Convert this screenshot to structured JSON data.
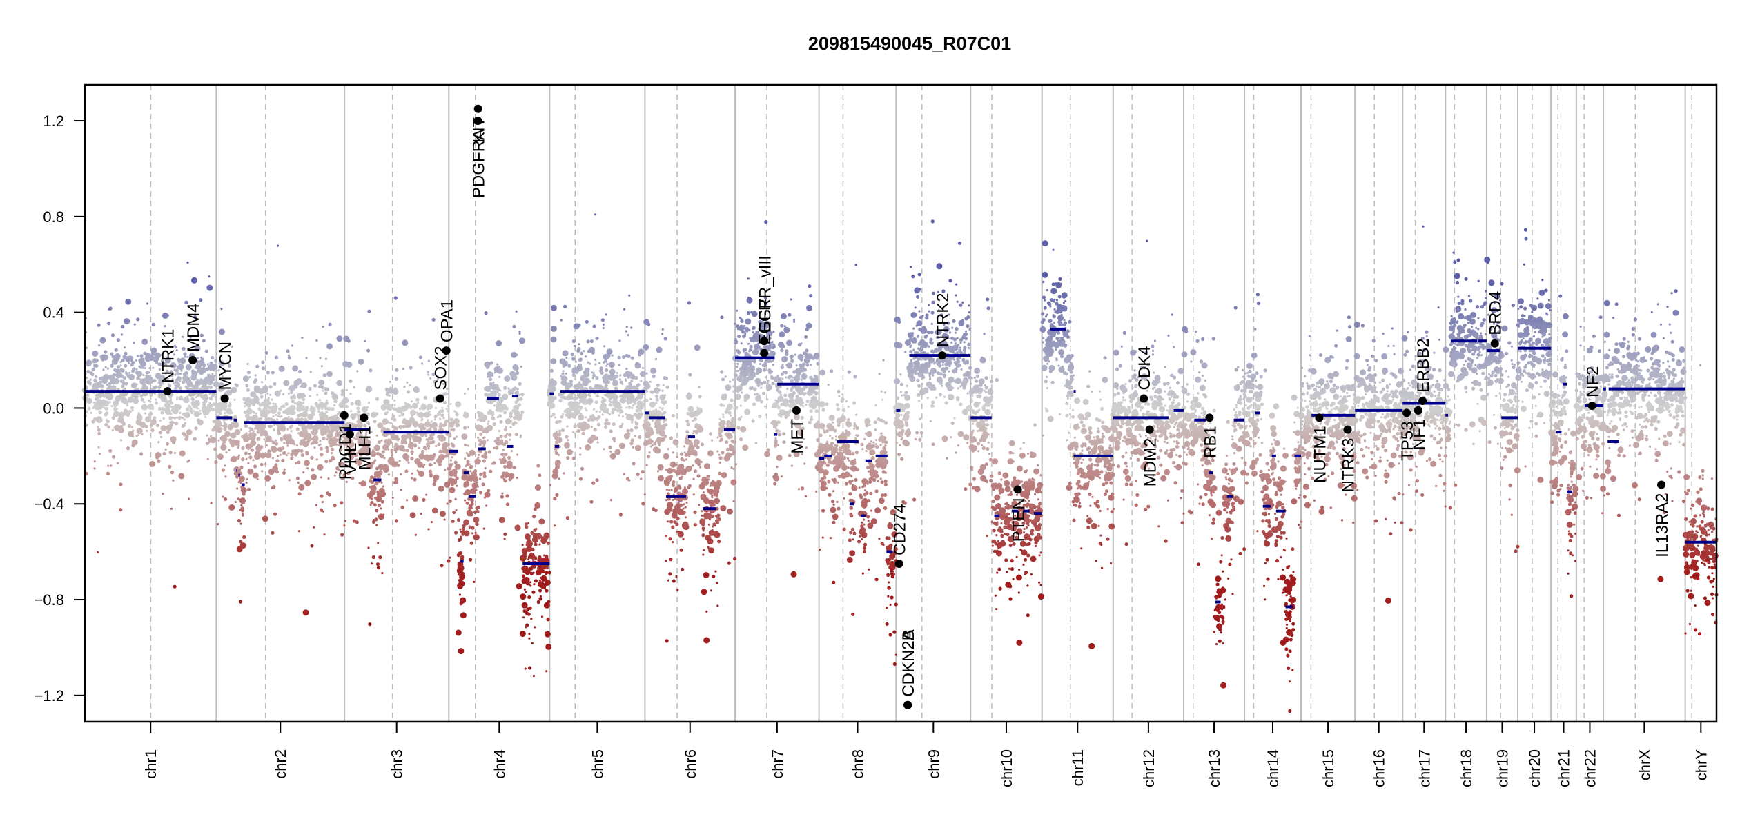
{
  "chart_data": {
    "type": "scatter",
    "title": "209815490045_R07C01",
    "xlabel": "",
    "ylabel": "",
    "ylim": [
      -1.31,
      1.35
    ],
    "yticks": [
      -1.2,
      -0.8,
      -0.4,
      0.0,
      0.4,
      0.8,
      1.2
    ],
    "ytick_labels": [
      "−1.2",
      "−0.8",
      "−0.4",
      "0.0",
      "0.4",
      "0.8",
      "1.2"
    ],
    "grid": false,
    "legend": "none",
    "colors": {
      "gain": "#5b5ea8",
      "neutral": "#cfcfcf",
      "loss": "#a01c1c",
      "segment": "#00008b",
      "gene_marker": "#000000",
      "chrom_border": "#bdbdbd",
      "centromere": "#bdbdbd"
    },
    "chromosomes": [
      {
        "name": "chr1",
        "label": "chr1",
        "length": 249.3,
        "centromere": 125.0
      },
      {
        "name": "chr2",
        "label": "chr2",
        "length": 243.2,
        "centromere": 93.3
      },
      {
        "name": "chr3",
        "label": "chr3",
        "length": 198.0,
        "centromere": 91.0
      },
      {
        "name": "chr4",
        "label": "chr4",
        "length": 191.2,
        "centromere": 50.4
      },
      {
        "name": "chr5",
        "label": "chr5",
        "length": 180.9,
        "centromere": 48.4
      },
      {
        "name": "chr6",
        "label": "chr6",
        "length": 171.1,
        "centromere": 61.0
      },
      {
        "name": "chr7",
        "label": "chr7",
        "length": 159.1,
        "centromere": 59.9
      },
      {
        "name": "chr8",
        "label": "chr8",
        "length": 146.4,
        "centromere": 45.6
      },
      {
        "name": "chr9",
        "label": "chr9",
        "length": 141.2,
        "centromere": 49.0
      },
      {
        "name": "chr10",
        "label": "chr10",
        "length": 135.5,
        "centromere": 40.2
      },
      {
        "name": "chr11",
        "label": "chr11",
        "length": 135.0,
        "centromere": 53.7
      },
      {
        "name": "chr12",
        "label": "chr12",
        "length": 133.9,
        "centromere": 35.8
      },
      {
        "name": "chr13",
        "label": "chr13",
        "length": 115.2,
        "centromere": 17.9
      },
      {
        "name": "chr14",
        "label": "chr14",
        "length": 107.3,
        "centromere": 17.6
      },
      {
        "name": "chr15",
        "label": "chr15",
        "length": 102.5,
        "centromere": 19.0
      },
      {
        "name": "chr16",
        "label": "chr16",
        "length": 90.4,
        "centromere": 36.6
      },
      {
        "name": "chr17",
        "label": "chr17",
        "length": 81.2,
        "centromere": 24.0
      },
      {
        "name": "chr18",
        "label": "chr18",
        "length": 78.1,
        "centromere": 17.2
      },
      {
        "name": "chr19",
        "label": "chr19",
        "length": 59.1,
        "centromere": 26.5
      },
      {
        "name": "chr20",
        "label": "chr20",
        "length": 63.0,
        "centromere": 27.5
      },
      {
        "name": "chr21",
        "label": "chr21",
        "length": 48.1,
        "centromere": 13.2
      },
      {
        "name": "chr22",
        "label": "chr22",
        "length": 51.3,
        "centromere": 14.7
      },
      {
        "name": "chrX",
        "label": "chrX",
        "length": 155.3,
        "centromere": 60.6
      },
      {
        "name": "chrY",
        "label": "chrY",
        "length": 59.4,
        "centromere": 12.5
      }
    ],
    "segments": [
      {
        "chr": "chr1",
        "start": 0,
        "end": 249.3,
        "value": 0.07
      },
      {
        "chr": "chr2",
        "start": 0,
        "end": 30,
        "value": -0.04
      },
      {
        "chr": "chr2",
        "start": 33,
        "end": 40,
        "value": -0.05
      },
      {
        "chr": "chr2",
        "start": 38,
        "end": 40,
        "value": -0.26
      },
      {
        "chr": "chr2",
        "start": 42,
        "end": 45,
        "value": -0.28
      },
      {
        "chr": "chr2",
        "start": 48,
        "end": 54,
        "value": -0.32
      },
      {
        "chr": "chr2",
        "start": 53,
        "end": 243.2,
        "value": -0.06
      },
      {
        "chr": "chr3",
        "start": 0,
        "end": 48,
        "value": -0.09
      },
      {
        "chr": "chr3",
        "start": 55,
        "end": 70,
        "value": -0.3
      },
      {
        "chr": "chr3",
        "start": 74,
        "end": 198.0,
        "value": -0.1
      },
      {
        "chr": "chr4",
        "start": 0,
        "end": 18,
        "value": -0.18
      },
      {
        "chr": "chr4",
        "start": 22,
        "end": 28,
        "value": -0.64
      },
      {
        "chr": "chr4",
        "start": 28,
        "end": 38,
        "value": -0.27
      },
      {
        "chr": "chr4",
        "start": 38,
        "end": 52,
        "value": -0.37
      },
      {
        "chr": "chr4",
        "start": 55,
        "end": 70,
        "value": -0.17
      },
      {
        "chr": "chr4",
        "start": 72,
        "end": 95,
        "value": 0.04
      },
      {
        "chr": "chr4",
        "start": 110,
        "end": 122,
        "value": -0.16
      },
      {
        "chr": "chr4",
        "start": 120,
        "end": 131,
        "value": 0.05
      },
      {
        "chr": "chr4",
        "start": 140,
        "end": 191.2,
        "value": -0.65
      },
      {
        "chr": "chr5",
        "start": 0,
        "end": 8,
        "value": 0.06
      },
      {
        "chr": "chr5",
        "start": 10,
        "end": 18,
        "value": -0.16
      },
      {
        "chr": "chr5",
        "start": 20,
        "end": 170,
        "value": 0.07
      },
      {
        "chr": "chr5",
        "start": 170,
        "end": 180.9,
        "value": 0.07
      },
      {
        "chr": "chr6",
        "start": 0,
        "end": 8,
        "value": -0.02
      },
      {
        "chr": "chr6",
        "start": 8,
        "end": 38,
        "value": -0.04
      },
      {
        "chr": "chr6",
        "start": 40,
        "end": 78,
        "value": -0.37
      },
      {
        "chr": "chr6",
        "start": 82,
        "end": 95,
        "value": -0.12
      },
      {
        "chr": "chr6",
        "start": 110,
        "end": 135,
        "value": -0.42
      },
      {
        "chr": "chr6",
        "start": 150,
        "end": 171.1,
        "value": -0.09
      },
      {
        "chr": "chr7",
        "start": 0,
        "end": 75,
        "value": 0.21
      },
      {
        "chr": "chr7",
        "start": 74,
        "end": 80,
        "value": -0.11
      },
      {
        "chr": "chr7",
        "start": 80,
        "end": 159.1,
        "value": 0.1
      },
      {
        "chr": "chr8",
        "start": 0,
        "end": 10,
        "value": -0.21
      },
      {
        "chr": "chr8",
        "start": 10,
        "end": 24,
        "value": -0.2
      },
      {
        "chr": "chr8",
        "start": 34,
        "end": 75,
        "value": -0.14
      },
      {
        "chr": "chr8",
        "start": 58,
        "end": 66,
        "value": -0.4
      },
      {
        "chr": "chr8",
        "start": 80,
        "end": 88,
        "value": -0.45
      },
      {
        "chr": "chr8",
        "start": 88,
        "end": 100,
        "value": -0.22
      },
      {
        "chr": "chr8",
        "start": 108,
        "end": 130,
        "value": -0.2
      },
      {
        "chr": "chr8",
        "start": 128,
        "end": 140,
        "value": -0.6
      },
      {
        "chr": "chr9",
        "start": 0,
        "end": 8,
        "value": -0.01
      },
      {
        "chr": "chr9",
        "start": 25,
        "end": 141.2,
        "value": 0.22
      },
      {
        "chr": "chr10",
        "start": 0,
        "end": 40,
        "value": -0.04
      },
      {
        "chr": "chr10",
        "start": 45,
        "end": 55,
        "value": -0.45
      },
      {
        "chr": "chr10",
        "start": 78,
        "end": 90,
        "value": -0.43
      },
      {
        "chr": "chr10",
        "start": 100,
        "end": 112,
        "value": -0.43
      },
      {
        "chr": "chr10",
        "start": 120,
        "end": 135.5,
        "value": -0.44
      },
      {
        "chr": "chr11",
        "start": 15,
        "end": 45,
        "value": 0.33
      },
      {
        "chr": "chr11",
        "start": 60,
        "end": 64,
        "value": 0.07
      },
      {
        "chr": "chr11",
        "start": 60,
        "end": 135.0,
        "value": -0.2
      },
      {
        "chr": "chr12",
        "start": 0,
        "end": 105,
        "value": -0.04
      },
      {
        "chr": "chr12",
        "start": 115,
        "end": 133.9,
        "value": -0.01
      },
      {
        "chr": "chr13",
        "start": 20,
        "end": 42,
        "value": -0.05
      },
      {
        "chr": "chr13",
        "start": 48,
        "end": 55,
        "value": -0.27
      },
      {
        "chr": "chr13",
        "start": 60,
        "end": 70,
        "value": -0.81
      },
      {
        "chr": "chr13",
        "start": 82,
        "end": 93,
        "value": -0.37
      },
      {
        "chr": "chr13",
        "start": 95,
        "end": 115.2,
        "value": -0.05
      },
      {
        "chr": "chr14",
        "start": 20,
        "end": 30,
        "value": -0.02
      },
      {
        "chr": "chr14",
        "start": 35,
        "end": 50,
        "value": -0.41
      },
      {
        "chr": "chr14",
        "start": 52,
        "end": 60,
        "value": -0.2
      },
      {
        "chr": "chr14",
        "start": 60,
        "end": 78,
        "value": -0.43
      },
      {
        "chr": "chr14",
        "start": 78,
        "end": 92,
        "value": -0.83
      },
      {
        "chr": "chr14",
        "start": 95,
        "end": 107.3,
        "value": -0.2
      },
      {
        "chr": "chr15",
        "start": 20,
        "end": 102.5,
        "value": -0.03
      },
      {
        "chr": "chr16",
        "start": 0,
        "end": 90.4,
        "value": -0.01
      },
      {
        "chr": "chr17",
        "start": 0,
        "end": 81.2,
        "value": 0.02
      },
      {
        "chr": "chr18",
        "start": 0,
        "end": 5,
        "value": -0.03
      },
      {
        "chr": "chr18",
        "start": 10,
        "end": 60,
        "value": 0.28
      },
      {
        "chr": "chr18",
        "start": 62,
        "end": 78.1,
        "value": 0.28
      },
      {
        "chr": "chr19",
        "start": 0,
        "end": 25,
        "value": 0.24
      },
      {
        "chr": "chr19",
        "start": 28,
        "end": 59.1,
        "value": -0.04
      },
      {
        "chr": "chr20",
        "start": 0,
        "end": 63.0,
        "value": 0.25
      },
      {
        "chr": "chr21",
        "start": 10,
        "end": 20,
        "value": -0.1
      },
      {
        "chr": "chr21",
        "start": 22,
        "end": 30,
        "value": 0.1
      },
      {
        "chr": "chr21",
        "start": 30,
        "end": 40,
        "value": -0.35
      },
      {
        "chr": "chr22",
        "start": 16,
        "end": 51.3,
        "value": 0.01
      },
      {
        "chr": "chrX",
        "start": 0,
        "end": 5,
        "value": 0.08
      },
      {
        "chr": "chrX",
        "start": 8,
        "end": 30,
        "value": -0.14
      },
      {
        "chr": "chrX",
        "start": 10,
        "end": 155.3,
        "value": 0.08
      },
      {
        "chr": "chrY",
        "start": 0,
        "end": 59.4,
        "value": -0.56
      }
    ],
    "genes": [
      {
        "name": "NTRK1",
        "chr": "chr1",
        "pos": 156.8,
        "value": 0.07,
        "label_side": "above"
      },
      {
        "name": "MDM4",
        "chr": "chr1",
        "pos": 204.5,
        "value": 0.2,
        "label_side": "above"
      },
      {
        "name": "MYCN",
        "chr": "chr2",
        "pos": 16.0,
        "value": 0.04,
        "label_side": "above"
      },
      {
        "name": "PDCD1",
        "chr": "chr2",
        "pos": 242.8,
        "value": -0.03,
        "label_side": "below"
      },
      {
        "name": "VHL",
        "chr": "chr3",
        "pos": 10.2,
        "value": -0.11,
        "label_side": "below"
      },
      {
        "name": "MLH1",
        "chr": "chr3",
        "pos": 37.0,
        "value": -0.04,
        "label_side": "below"
      },
      {
        "name": "SOX2",
        "chr": "chr3",
        "pos": 181.4,
        "value": 0.04,
        "label_side": "above"
      },
      {
        "name": "OPA1",
        "chr": "chr3",
        "pos": 193.3,
        "value": 0.24,
        "label_side": "above"
      },
      {
        "name": "PDGFRA",
        "chr": "chr4",
        "pos": 55.1,
        "value": 1.2,
        "label_side": "below"
      },
      {
        "name": "KIT",
        "chr": "chr4",
        "pos": 55.5,
        "value": 1.25,
        "label_side": "below"
      },
      {
        "name": "EGFR",
        "chr": "chr7",
        "pos": 55.1,
        "value": 0.23,
        "label_side": "above"
      },
      {
        "name": "EGFR_vIII",
        "chr": "chr7",
        "pos": 55.2,
        "value": 0.28,
        "label_side": "above"
      },
      {
        "name": "MET",
        "chr": "chr7",
        "pos": 116.3,
        "value": -0.01,
        "label_side": "below"
      },
      {
        "name": "CD274",
        "chr": "chr9",
        "pos": 5.5,
        "value": -0.65,
        "label_side": "above"
      },
      {
        "name": "CDKN2A",
        "chr": "chr9",
        "pos": 21.9,
        "value": -1.24,
        "label_side": "above"
      },
      {
        "name": "CDKN2B",
        "chr": "chr9",
        "pos": 22.0,
        "value": -1.24,
        "label_side": "above"
      },
      {
        "name": "NTRK2",
        "chr": "chr9",
        "pos": 87.3,
        "value": 0.22,
        "label_side": "above"
      },
      {
        "name": "PTEN",
        "chr": "chr10",
        "pos": 89.6,
        "value": -0.34,
        "label_side": "below"
      },
      {
        "name": "CDK4",
        "chr": "chr12",
        "pos": 58.1,
        "value": 0.04,
        "label_side": "above"
      },
      {
        "name": "MDM2",
        "chr": "chr12",
        "pos": 69.2,
        "value": -0.09,
        "label_side": "below"
      },
      {
        "name": "RB1",
        "chr": "chr13",
        "pos": 48.9,
        "value": -0.04,
        "label_side": "below"
      },
      {
        "name": "NUTM1",
        "chr": "chr15",
        "pos": 34.6,
        "value": -0.04,
        "label_side": "below"
      },
      {
        "name": "NTRK3",
        "chr": "chr15",
        "pos": 88.5,
        "value": -0.09,
        "label_side": "below"
      },
      {
        "name": "TP53",
        "chr": "chr17",
        "pos": 7.6,
        "value": -0.02,
        "label_side": "below"
      },
      {
        "name": "NF1",
        "chr": "chr17",
        "pos": 29.5,
        "value": -0.01,
        "label_side": "below"
      },
      {
        "name": "ERBB2",
        "chr": "chr17",
        "pos": 37.8,
        "value": 0.03,
        "label_side": "above"
      },
      {
        "name": "BRD4",
        "chr": "chr19",
        "pos": 15.4,
        "value": 0.27,
        "label_side": "above"
      },
      {
        "name": "NF2",
        "chr": "chr22",
        "pos": 29.9,
        "value": 0.01,
        "label_side": "above"
      },
      {
        "name": "IL13RA2",
        "chr": "chrX",
        "pos": 110.0,
        "value": -0.32,
        "label_side": "below"
      }
    ]
  }
}
